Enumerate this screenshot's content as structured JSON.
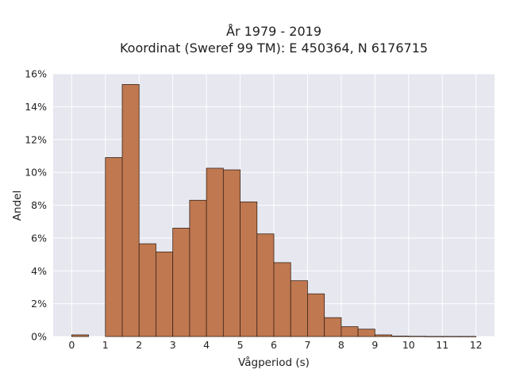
{
  "chart_data": {
    "type": "bar",
    "title_lines": [
      "År 1979 - 2019",
      "Koordinat (Sweref 99 TM): E 450364, N 6176715"
    ],
    "xlabel": "Vågperiod (s)",
    "ylabel": "Andel",
    "xlim": [
      -0.55,
      12.55
    ],
    "ylim": [
      0,
      16
    ],
    "x_ticks": [
      0,
      1,
      2,
      3,
      4,
      5,
      6,
      7,
      8,
      9,
      10,
      11,
      12
    ],
    "y_ticks": [
      0,
      2,
      4,
      6,
      8,
      10,
      12,
      14,
      16
    ],
    "y_tick_labels": [
      "0%",
      "2%",
      "4%",
      "6%",
      "8%",
      "10%",
      "12%",
      "14%",
      "16%"
    ],
    "bin_width": 0.5,
    "bins": [
      {
        "start": 0.0,
        "value": 0.1
      },
      {
        "start": 0.5,
        "value": 0.0
      },
      {
        "start": 1.0,
        "value": 10.9
      },
      {
        "start": 1.5,
        "value": 15.35
      },
      {
        "start": 2.0,
        "value": 5.65
      },
      {
        "start": 2.5,
        "value": 5.15
      },
      {
        "start": 3.0,
        "value": 6.6
      },
      {
        "start": 3.5,
        "value": 8.3
      },
      {
        "start": 4.0,
        "value": 10.25
      },
      {
        "start": 4.5,
        "value": 10.15
      },
      {
        "start": 5.0,
        "value": 8.2
      },
      {
        "start": 5.5,
        "value": 6.25
      },
      {
        "start": 6.0,
        "value": 4.5
      },
      {
        "start": 6.5,
        "value": 3.4
      },
      {
        "start": 7.0,
        "value": 2.6
      },
      {
        "start": 7.5,
        "value": 1.15
      },
      {
        "start": 8.0,
        "value": 0.6
      },
      {
        "start": 8.5,
        "value": 0.45
      },
      {
        "start": 9.0,
        "value": 0.1
      },
      {
        "start": 9.5,
        "value": 0.03
      },
      {
        "start": 10.0,
        "value": 0.02
      },
      {
        "start": 10.5,
        "value": 0.01
      },
      {
        "start": 11.0,
        "value": 0.01
      },
      {
        "start": 11.5,
        "value": 0.01
      }
    ],
    "grid": true,
    "colors": {
      "bar": "#c07850",
      "bar_edge": "#3a2418",
      "plot_bg": "#e6e7ef",
      "grid": "#ffffff"
    }
  }
}
